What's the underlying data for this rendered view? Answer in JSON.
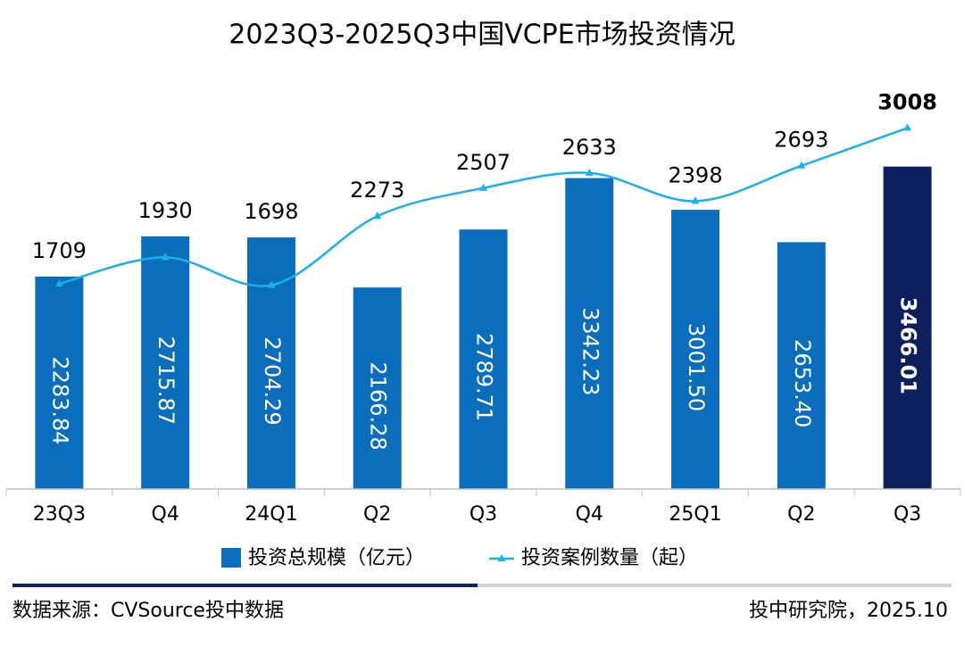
{
  "chart_data": {
    "type": "bar_line",
    "title": "2023Q3-2025Q3中国VCPE市场投资情况",
    "categories": [
      "23Q3",
      "Q4",
      "24Q1",
      "Q2",
      "Q3",
      "Q4",
      "25Q1",
      "Q2",
      "Q3"
    ],
    "series": [
      {
        "name": "投资总规模（亿元）",
        "color": "#0a6ebd",
        "colors": [
          "#0a6ebd",
          "#0a6ebd",
          "#0a6ebd",
          "#0a6ebd",
          "#0a6ebd",
          "#0a6ebd",
          "#0a6ebd",
          "#0a6ebd",
          "#0d1f5c"
        ],
        "values": [
          2283.84,
          2715.87,
          2704.29,
          2166.28,
          2789.71,
          3342.23,
          3001.5,
          2653.4,
          3466.01
        ],
        "value_labels": [
          "2283.84",
          "2715.87",
          "2704.29",
          "2166.28",
          "2789.71",
          "3342.23",
          "3001.50",
          "2653.40",
          "3466.01"
        ]
      },
      {
        "name": "投资案例数量（起）",
        "color": "#1ab0e8",
        "axis": "y2",
        "values": [
          1709,
          1930,
          1698,
          2273,
          2507,
          2633,
          2398,
          2693,
          3008
        ]
      }
    ],
    "ylim": [
      0,
      4000
    ],
    "y2lim": [
      0,
      3100
    ],
    "source": "数据来源：CVSource投中数据",
    "credit": "投中研究院，2025.10"
  }
}
